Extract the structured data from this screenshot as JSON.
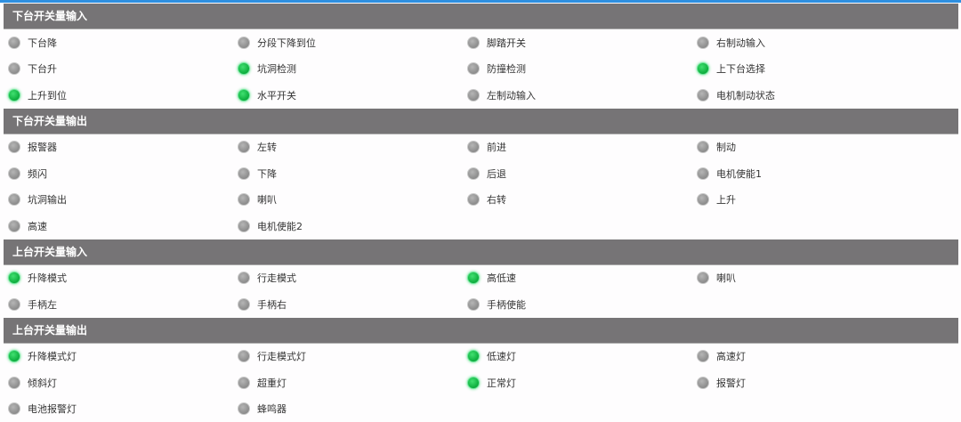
{
  "colors": {
    "header_bg": "#767476",
    "led_on": "#10b040",
    "led_off": "#8c8c8c",
    "top_accent": "#2e8fe0"
  },
  "sections": [
    {
      "title": "下台开关量输入",
      "items": [
        {
          "label": "下台降",
          "on": false
        },
        {
          "label": "分段下降到位",
          "on": false
        },
        {
          "label": "脚踏开关",
          "on": false
        },
        {
          "label": "右制动输入",
          "on": false
        },
        {
          "label": "下台升",
          "on": false
        },
        {
          "label": "坑洞检测",
          "on": true
        },
        {
          "label": "防撞检测",
          "on": false
        },
        {
          "label": "上下台选择",
          "on": true
        },
        {
          "label": "上升到位",
          "on": true
        },
        {
          "label": "水平开关",
          "on": true
        },
        {
          "label": "左制动输入",
          "on": false
        },
        {
          "label": "电机制动状态",
          "on": false
        }
      ]
    },
    {
      "title": "下台开关量输出",
      "items": [
        {
          "label": "报警器",
          "on": false
        },
        {
          "label": "左转",
          "on": false
        },
        {
          "label": "前进",
          "on": false
        },
        {
          "label": "制动",
          "on": false
        },
        {
          "label": "频闪",
          "on": false
        },
        {
          "label": "下降",
          "on": false
        },
        {
          "label": "后退",
          "on": false
        },
        {
          "label": "电机使能1",
          "on": false
        },
        {
          "label": "坑洞输出",
          "on": false
        },
        {
          "label": "喇叭",
          "on": false
        },
        {
          "label": "右转",
          "on": false
        },
        {
          "label": "上升",
          "on": false
        },
        {
          "label": "高速",
          "on": false
        },
        {
          "label": "电机使能2",
          "on": false
        }
      ]
    },
    {
      "title": "上台开关量输入",
      "items": [
        {
          "label": "升降模式",
          "on": true
        },
        {
          "label": "行走模式",
          "on": false
        },
        {
          "label": "高低速",
          "on": true
        },
        {
          "label": "喇叭",
          "on": false
        },
        {
          "label": "手柄左",
          "on": false
        },
        {
          "label": "手柄右",
          "on": false
        },
        {
          "label": "手柄使能",
          "on": false
        }
      ]
    },
    {
      "title": "上台开关量输出",
      "items": [
        {
          "label": "升降模式灯",
          "on": true
        },
        {
          "label": "行走模式灯",
          "on": false
        },
        {
          "label": "低速灯",
          "on": true
        },
        {
          "label": "高速灯",
          "on": false
        },
        {
          "label": "倾斜灯",
          "on": false
        },
        {
          "label": "超重灯",
          "on": false
        },
        {
          "label": "正常灯",
          "on": true
        },
        {
          "label": "报警灯",
          "on": false
        },
        {
          "label": "电池报警灯",
          "on": false
        },
        {
          "label": "蜂鸣器",
          "on": false
        }
      ]
    }
  ]
}
